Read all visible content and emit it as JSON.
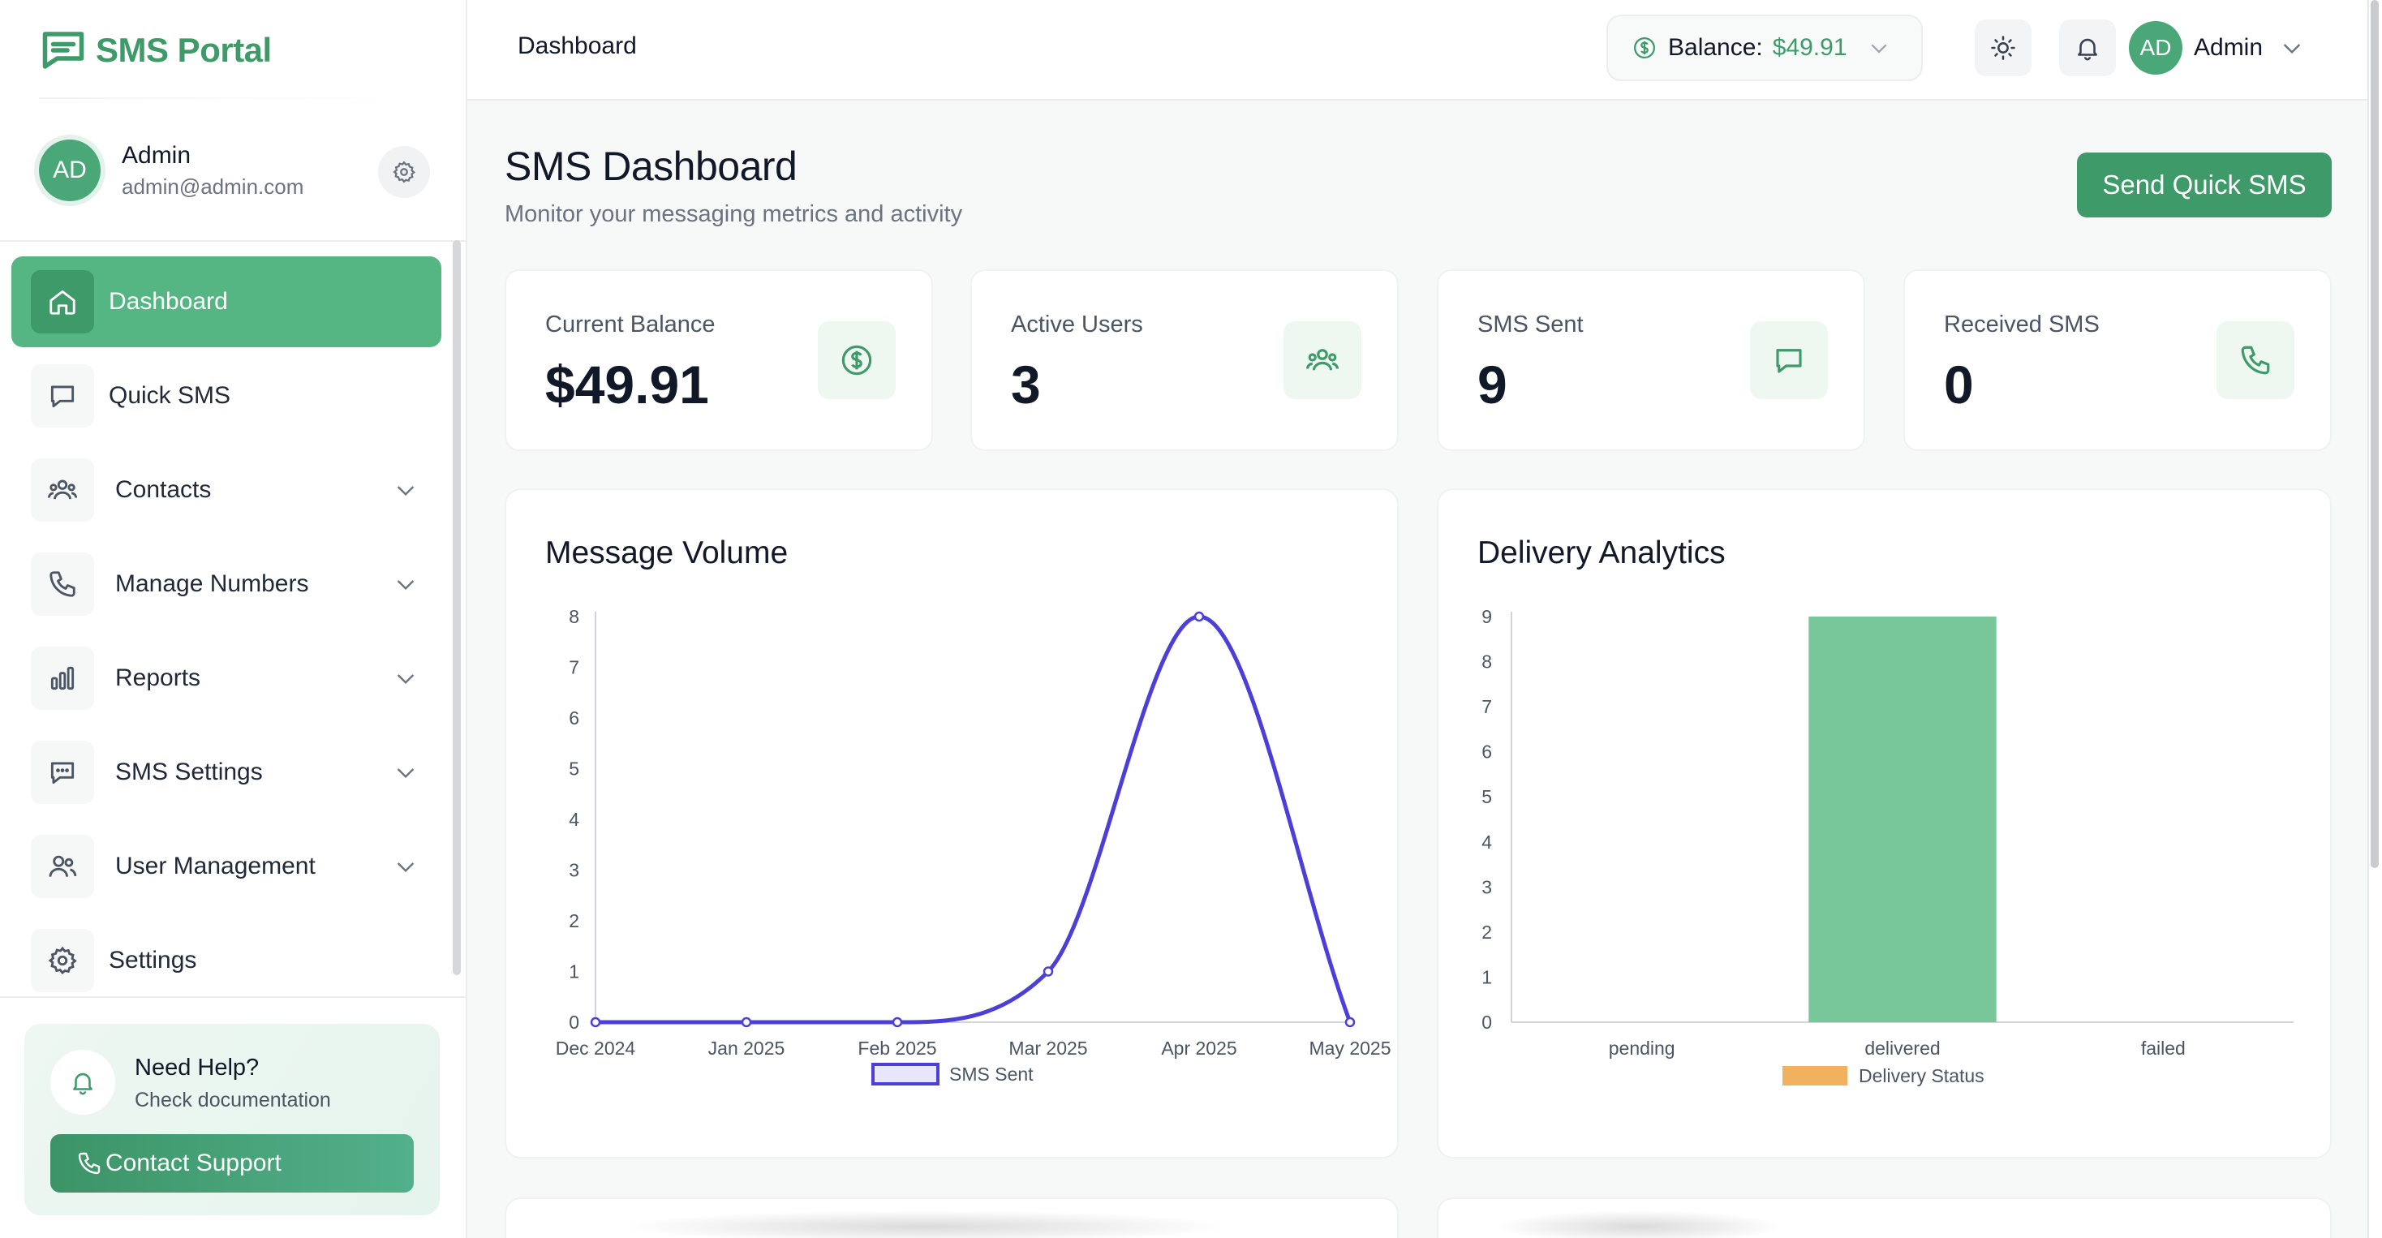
{
  "brand": {
    "name": "SMS Portal"
  },
  "sidebar": {
    "user": {
      "initials": "AD",
      "name": "Admin",
      "email": "admin@admin.com"
    },
    "items": [
      {
        "label": "Dashboard",
        "icon": "home-icon",
        "active": true
      },
      {
        "label": "Quick SMS",
        "icon": "message-icon"
      },
      {
        "label": "Contacts",
        "icon": "users-icon",
        "expandable": true
      },
      {
        "label": "Manage Numbers",
        "icon": "phone-icon",
        "expandable": true
      },
      {
        "label": "Reports",
        "icon": "bar-chart-icon",
        "expandable": true
      },
      {
        "label": "SMS Settings",
        "icon": "message-dots-icon",
        "expandable": true
      },
      {
        "label": "User Management",
        "icon": "user-group-icon",
        "expandable": true
      },
      {
        "label": "Settings",
        "icon": "gear-icon"
      }
    ],
    "help": {
      "title": "Need Help?",
      "subtitle": "Check documentation",
      "button": "Contact Support"
    }
  },
  "topbar": {
    "breadcrumb": "Dashboard",
    "balance_label": "Balance:",
    "balance_value": "$49.91",
    "user_initials": "AD",
    "user_name": "Admin"
  },
  "main": {
    "title": "SMS Dashboard",
    "subtitle": "Monitor your messaging metrics and activity",
    "quick_button": "Send Quick SMS",
    "stats": [
      {
        "label": "Current Balance",
        "value": "$49.91",
        "icon": "dollar-icon"
      },
      {
        "label": "Active Users",
        "value": "3",
        "icon": "users-icon"
      },
      {
        "label": "SMS Sent",
        "value": "9",
        "icon": "message-icon"
      },
      {
        "label": "Received SMS",
        "value": "0",
        "icon": "phone-icon"
      }
    ]
  },
  "colors": {
    "accent": "#3f9a6a",
    "active_nav": "#55b683",
    "line_series": "#4b3fd8",
    "bar_series": "#78c79b",
    "legend_bar": "#f0b25e"
  },
  "chart_data": [
    {
      "type": "line",
      "title": "Message Volume",
      "categories": [
        "Dec 2024",
        "Jan 2025",
        "Feb 2025",
        "Mar 2025",
        "Apr 2025",
        "May 2025"
      ],
      "series": [
        {
          "name": "SMS Sent",
          "values": [
            0,
            0,
            0,
            1,
            8,
            0
          ]
        }
      ],
      "yticks": [
        "0",
        "1",
        "2",
        "3",
        "4",
        "5",
        "6",
        "7",
        "8"
      ],
      "ylim": [
        0,
        8
      ],
      "legend": "bottom"
    },
    {
      "type": "bar",
      "title": "Delivery Analytics",
      "categories": [
        "pending",
        "delivered",
        "failed"
      ],
      "series": [
        {
          "name": "Delivery Status",
          "values": [
            0,
            9,
            0
          ]
        }
      ],
      "yticks": [
        "0",
        "1",
        "2",
        "3",
        "4",
        "5",
        "6",
        "7",
        "8",
        "9"
      ],
      "ylim": [
        0,
        9
      ],
      "legend": "bottom"
    }
  ]
}
